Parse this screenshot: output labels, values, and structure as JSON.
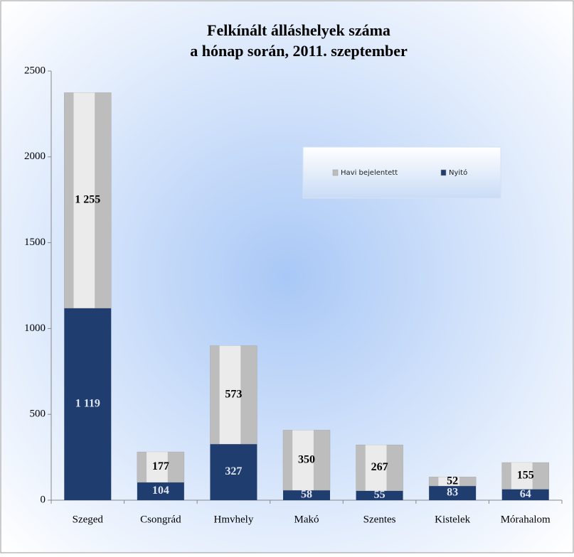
{
  "chart_data": {
    "type": "stacked_bar",
    "title": [
      "Felkínált álláshelyek száma",
      "a hónap során, 2011. szeptember"
    ],
    "categories": [
      "Szeged",
      "Csongrád",
      "Hmvhely",
      "Makó",
      "Szentes",
      "Kistelek",
      "Mórahalom"
    ],
    "series": [
      {
        "name": "Nyitó",
        "color": "#1f3d6e",
        "values": [
          1119,
          104,
          327,
          58,
          55,
          83,
          64
        ],
        "value_labels": [
          "1 119",
          "104",
          "327",
          "58",
          "55",
          "83",
          "64"
        ]
      },
      {
        "name": "Havi bejelentett",
        "color": "#bdbdbd",
        "values": [
          1255,
          177,
          573,
          350,
          267,
          52,
          155
        ],
        "value_labels": [
          "1 255",
          "177",
          "573",
          "350",
          "267",
          "52",
          "155"
        ]
      }
    ],
    "ylim": [
      0,
      2500
    ],
    "yticks": [
      0,
      500,
      1000,
      1500,
      2000,
      2500
    ]
  }
}
